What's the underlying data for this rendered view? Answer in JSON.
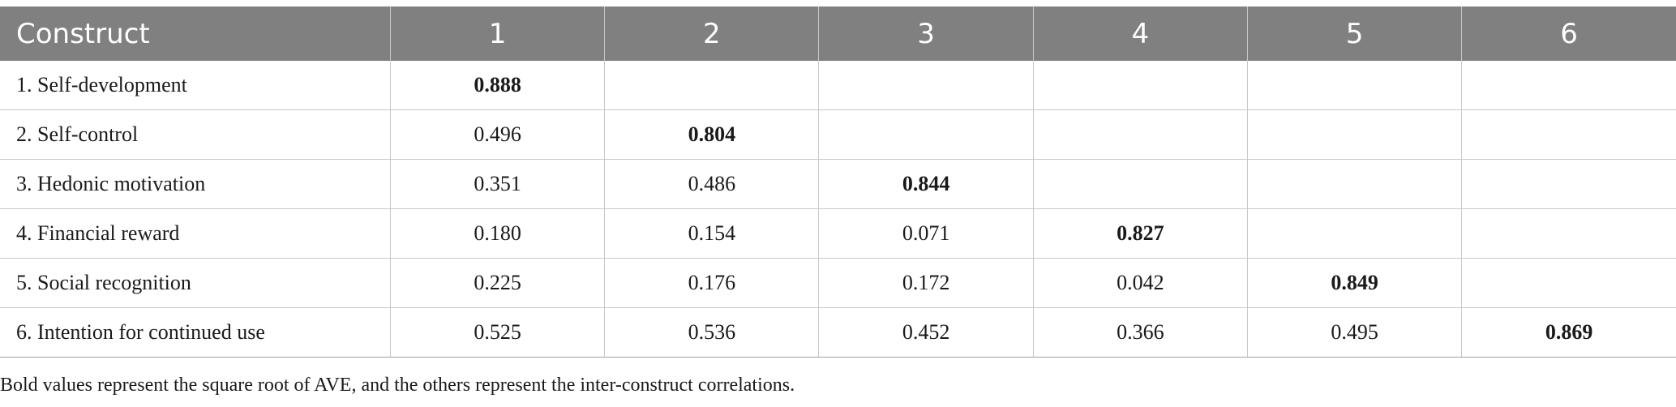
{
  "table": {
    "headers": [
      "Construct",
      "1",
      "2",
      "3",
      "4",
      "5",
      "6"
    ],
    "rows": [
      {
        "label": "1. Self-development",
        "values": [
          "0.888",
          "",
          "",
          "",
          "",
          ""
        ]
      },
      {
        "label": "2. Self-control",
        "values": [
          "0.496",
          "0.804",
          "",
          "",
          "",
          ""
        ]
      },
      {
        "label": "3. Hedonic motivation",
        "values": [
          "0.351",
          "0.486",
          "0.844",
          "",
          "",
          ""
        ]
      },
      {
        "label": "4. Financial reward",
        "values": [
          "0.180",
          "0.154",
          "0.071",
          "0.827",
          "",
          ""
        ]
      },
      {
        "label": "5. Social recognition",
        "values": [
          "0.225",
          "0.176",
          "0.172",
          "0.042",
          "0.849",
          ""
        ]
      },
      {
        "label": "6. Intention for continued use",
        "values": [
          "0.525",
          "0.536",
          "0.452",
          "0.366",
          "0.495",
          "0.869"
        ]
      }
    ]
  },
  "footnote": "Bold values represent the square root of AVE, and the others represent the inter-construct correlations.",
  "colors": {
    "header_bg": "#808080",
    "header_text": "#ffffff",
    "grid": "#c8c8c8"
  }
}
